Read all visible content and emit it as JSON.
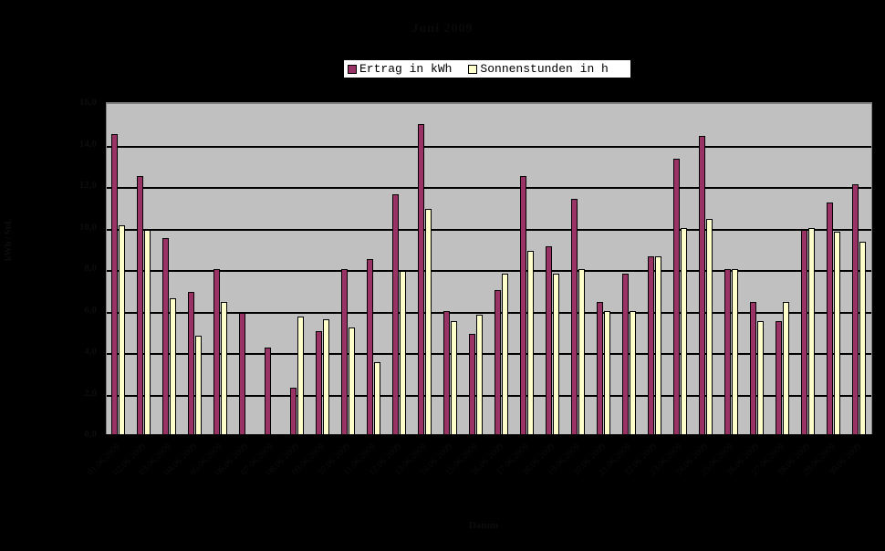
{
  "chart_data": {
    "type": "bar",
    "title": "Juni 2009",
    "xlabel": "Datum",
    "ylabel": "kWh / Std.",
    "ylim": [
      0,
      16
    ],
    "yticks": [
      "0,0",
      "2,0",
      "4,0",
      "6,0",
      "8,0",
      "10,0",
      "12,0",
      "14,0",
      "16,0"
    ],
    "grid": true,
    "legend_position": "top",
    "categories": [
      "01.06.2009",
      "02.06.2009",
      "03.06.2009",
      "04.06.2009",
      "05.06.2009",
      "06.06.2009",
      "07.06.2009",
      "08.06.2009",
      "09.06.2009",
      "10.06.2009",
      "11.06.2009",
      "12.06.2009",
      "13.06.2009",
      "14.06.2009",
      "15.06.2009",
      "16.06.2009",
      "17.06.2009",
      "18.06.2009",
      "19.06.2009",
      "20.06.2009",
      "21.06.2009",
      "22.06.2009",
      "23.06.2009",
      "24.06.2009",
      "25.06.2009",
      "26.06.2009",
      "27.06.2009",
      "28.06.2009",
      "29.06.2009",
      "30.06.2009"
    ],
    "series": [
      {
        "name": "Ertrag in kWh",
        "color": "#993366",
        "values": [
          14.5,
          12.5,
          9.5,
          6.9,
          8.0,
          5.9,
          4.2,
          2.3,
          5.0,
          8.0,
          8.5,
          11.6,
          15.0,
          6.0,
          4.9,
          7.0,
          12.5,
          9.1,
          11.4,
          6.4,
          7.8,
          8.6,
          13.3,
          14.4,
          8.0,
          6.4,
          5.5,
          9.9,
          11.2,
          12.1
        ]
      },
      {
        "name": "Sonnenstunden in h",
        "color": "#ffffcc",
        "values": [
          10.1,
          9.9,
          6.6,
          4.8,
          6.4,
          0.0,
          0.0,
          5.7,
          5.6,
          5.2,
          3.5,
          7.9,
          10.9,
          5.5,
          5.8,
          7.8,
          8.9,
          7.8,
          8.0,
          6.0,
          6.0,
          8.6,
          10.0,
          10.4,
          8.0,
          5.5,
          6.4,
          10.0,
          9.8,
          9.3
        ]
      }
    ]
  },
  "legend": {
    "items": [
      {
        "label": "Ertrag in kWh",
        "color": "#993366"
      },
      {
        "label": "Sonnenstunden in h",
        "color": "#ffffcc"
      }
    ]
  }
}
